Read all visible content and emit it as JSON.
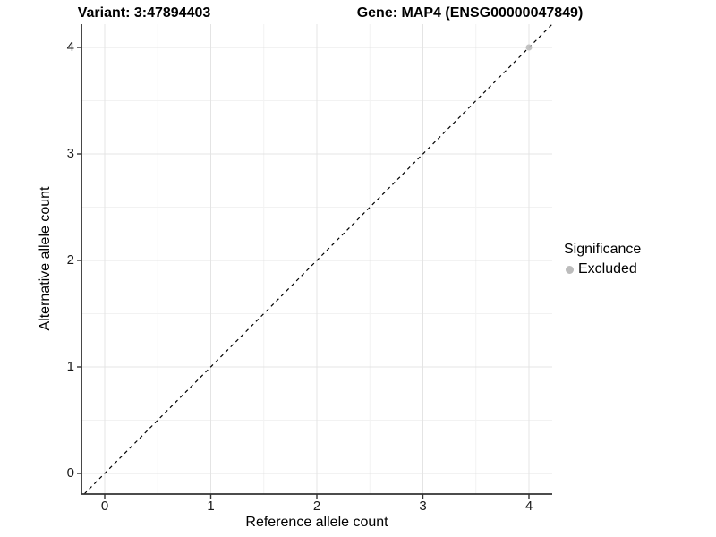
{
  "chart_data": {
    "type": "scatter",
    "title_left": "Variant: 3:47894403",
    "title_right": "Gene: MAP4 (ENSG00000047849)",
    "xlabel": "Reference allele count",
    "ylabel": "Alternative allele count",
    "xlim": [
      -0.22,
      4.22
    ],
    "ylim": [
      -0.22,
      4.22
    ],
    "x_ticks": [
      0,
      1,
      2,
      3,
      4
    ],
    "y_ticks": [
      0,
      1,
      2,
      3,
      4
    ],
    "x_minor_ticks": [
      0.5,
      1.5,
      2.5,
      3.5
    ],
    "y_minor_ticks": [
      0.5,
      1.5,
      2.5,
      3.5
    ],
    "grid": "major and minor gridlines on",
    "identity_line": {
      "style": "dashed",
      "color": "#000000",
      "equation": "y = x"
    },
    "series": [
      {
        "name": "Excluded",
        "color": "#bcbcbc",
        "points": [
          {
            "x": 4,
            "y": 4
          }
        ]
      }
    ],
    "legend": {
      "title": "Significance",
      "position": "right",
      "items": [
        {
          "label": "Excluded",
          "color": "#bcbcbc"
        }
      ]
    }
  },
  "colors": {
    "background": "#ffffff",
    "axis_line": "#333333",
    "tick_mark": "#333333",
    "major_grid": "#e4e4e4",
    "minor_grid": "#f2f2f2",
    "text": "#000000",
    "excluded_point": "#bcbcbc"
  }
}
